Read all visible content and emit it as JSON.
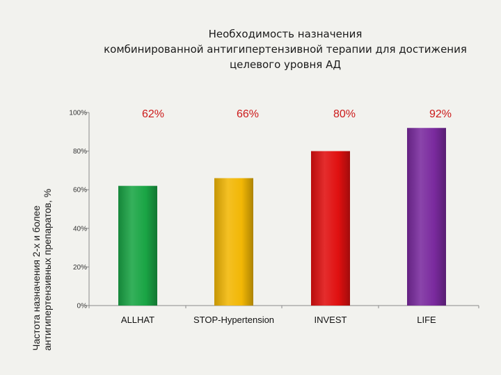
{
  "title_lines": [
    "Необходимость назначения",
    "комбинированной  антигипертензивной терапии для достижения",
    "целевого уровня АД"
  ],
  "ylabel_lines": [
    "Частота  назначения 2-х и более",
    "антигипертензивных препаратов, %"
  ],
  "chart_data": {
    "type": "bar",
    "title": "Необходимость назначения комбинированной  антигипертензивной терапии для достижения целевого уровня АД",
    "xlabel": "",
    "ylabel": "Частота  назначения 2-х и более антигипертензивных препаратов, %",
    "categories": [
      "ALLHAT",
      "STOP-Hypertension",
      "INVEST",
      "LIFE"
    ],
    "values": [
      62,
      66,
      80,
      92
    ],
    "data_labels": [
      "62%",
      "66%",
      "80%",
      "92%"
    ],
    "ylim": [
      0,
      100
    ],
    "yticks": [
      0,
      20,
      40,
      60,
      80,
      100
    ],
    "ytick_labels": [
      "0%",
      "20%",
      "40%",
      "60%",
      "80%",
      "100%"
    ],
    "colors": [
      "#1aa545",
      "#f2b705",
      "#e01010",
      "#7a2a9e"
    ],
    "label_color": "#cc1a1a",
    "grid": false,
    "legend": "none"
  }
}
